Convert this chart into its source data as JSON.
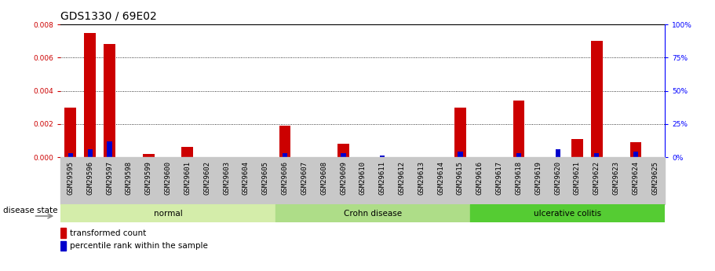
{
  "title": "GDS1330 / 69E02",
  "samples": [
    "GSM29595",
    "GSM29596",
    "GSM29597",
    "GSM29598",
    "GSM29599",
    "GSM29600",
    "GSM29601",
    "GSM29602",
    "GSM29603",
    "GSM29604",
    "GSM29605",
    "GSM29606",
    "GSM29607",
    "GSM29608",
    "GSM29609",
    "GSM29610",
    "GSM29611",
    "GSM29612",
    "GSM29613",
    "GSM29614",
    "GSM29615",
    "GSM29616",
    "GSM29617",
    "GSM29618",
    "GSM29619",
    "GSM29620",
    "GSM29621",
    "GSM29622",
    "GSM29623",
    "GSM29624",
    "GSM29625"
  ],
  "red_values": [
    0.003,
    0.0075,
    0.0068,
    0.0,
    0.0002,
    0.0,
    0.0006,
    0.0,
    0.0,
    0.0,
    0.0,
    0.0019,
    0.0,
    0.0,
    0.0008,
    0.0,
    0.0,
    0.0,
    0.0,
    0.0,
    0.003,
    0.0,
    0.0,
    0.0034,
    0.0,
    0.0,
    0.0011,
    0.007,
    0.0,
    0.0009,
    0.0
  ],
  "blue_percentile": [
    3,
    6,
    12,
    0,
    0,
    0,
    0,
    0,
    0,
    0,
    0,
    3,
    0,
    0,
    3,
    0,
    1,
    0,
    0,
    0,
    4,
    0,
    0,
    3,
    0,
    6,
    0,
    3,
    0,
    4,
    0
  ],
  "groups": [
    {
      "label": "normal",
      "start": 0,
      "end": 10,
      "color": "#d4edaa"
    },
    {
      "label": "Crohn disease",
      "start": 11,
      "end": 20,
      "color": "#aedd88"
    },
    {
      "label": "ulcerative colitis",
      "start": 21,
      "end": 30,
      "color": "#55cc33"
    }
  ],
  "ylim_left": [
    0,
    0.008
  ],
  "ylim_right": [
    0,
    100
  ],
  "yticks_left": [
    0,
    0.002,
    0.004,
    0.006,
    0.008
  ],
  "yticks_right": [
    0,
    25,
    50,
    75,
    100
  ],
  "red_color": "#cc0000",
  "blue_color": "#0000cc",
  "bar_width": 0.6,
  "blue_bar_width": 0.25,
  "bg_color": "#ffffff",
  "grid_color": "#000000",
  "title_fontsize": 10,
  "tick_fontsize": 6.5,
  "label_fontsize": 8,
  "xticklabel_bg": "#c8c8c8"
}
